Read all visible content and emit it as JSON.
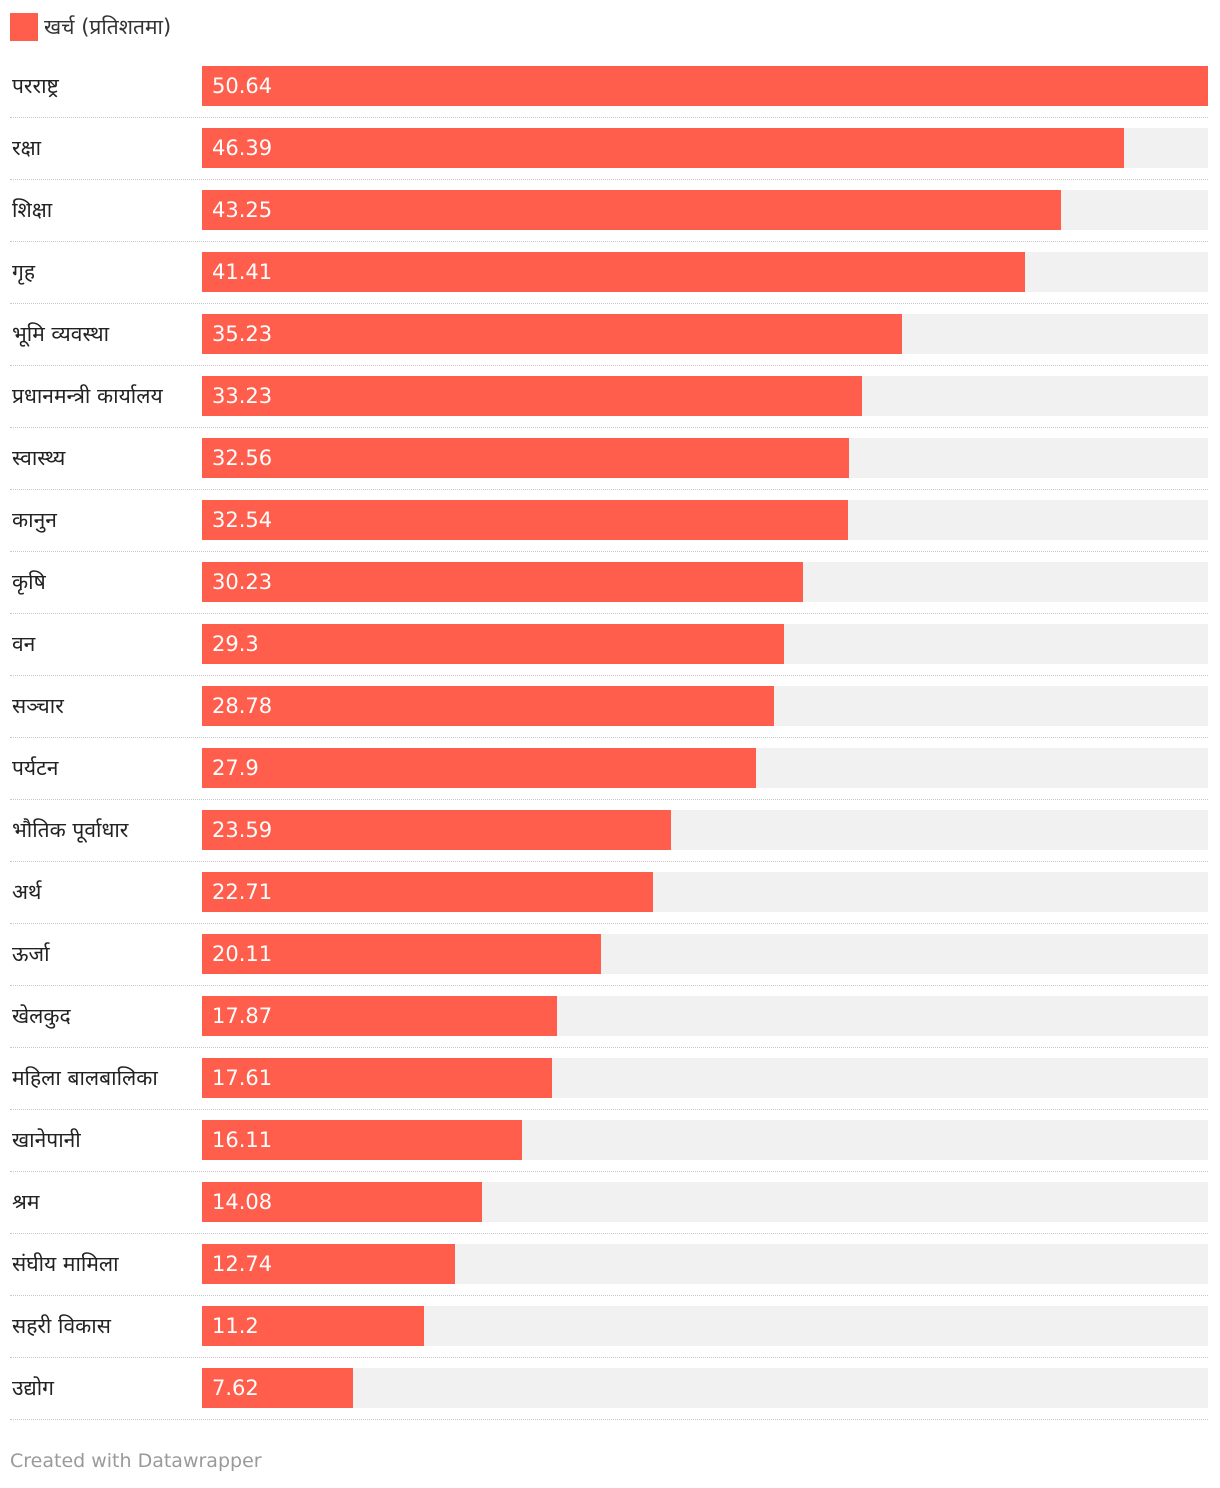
{
  "legend": {
    "label": "खर्च (प्रतिशतमा)",
    "color": "#ff5e4c"
  },
  "colors": {
    "bar": "#ff5e4c",
    "track": "#f1f1f1"
  },
  "footer": {
    "text": "Created with Datawrapper"
  },
  "chart_data": {
    "type": "bar",
    "orientation": "horizontal",
    "categories": [
      "परराष्ट्र",
      "रक्षा",
      "शिक्षा",
      "गृह",
      "भूमि व्यवस्था",
      "प्रधानमन्त्री कार्यालय",
      "स्वास्थ्य",
      "कानुन",
      "कृषि",
      "वन",
      "सञ्चार",
      "पर्यटन",
      "भौतिक पूर्वाधार",
      "अर्थ",
      "ऊर्जा",
      "खेलकुद",
      "महिला बालबालिका",
      "खानेपानी",
      "श्रम",
      "संघीय मामिला",
      "सहरी विकास",
      "उद्योग"
    ],
    "value_labels": [
      "50.64",
      "46.39",
      "43.25",
      "41.41",
      "35.23",
      "33.23",
      "32.56",
      "32.54",
      "30.23",
      "29.3",
      "28.78",
      "27.9",
      "23.59",
      "22.71",
      "20.11",
      "17.87",
      "17.61",
      "16.11",
      "14.08",
      "12.74",
      "11.2",
      "7.62"
    ],
    "series": [
      {
        "name": "खर्च (प्रतिशतमा)",
        "values": [
          50.64,
          46.39,
          43.25,
          41.41,
          35.23,
          33.23,
          32.56,
          32.54,
          30.23,
          29.3,
          28.78,
          27.9,
          23.59,
          22.71,
          20.11,
          17.87,
          17.61,
          16.11,
          14.08,
          12.74,
          11.2,
          7.62
        ]
      }
    ],
    "xlim": [
      0,
      50.64
    ],
    "legend_position": "top-left",
    "data_labels": "inside-bar-start"
  }
}
